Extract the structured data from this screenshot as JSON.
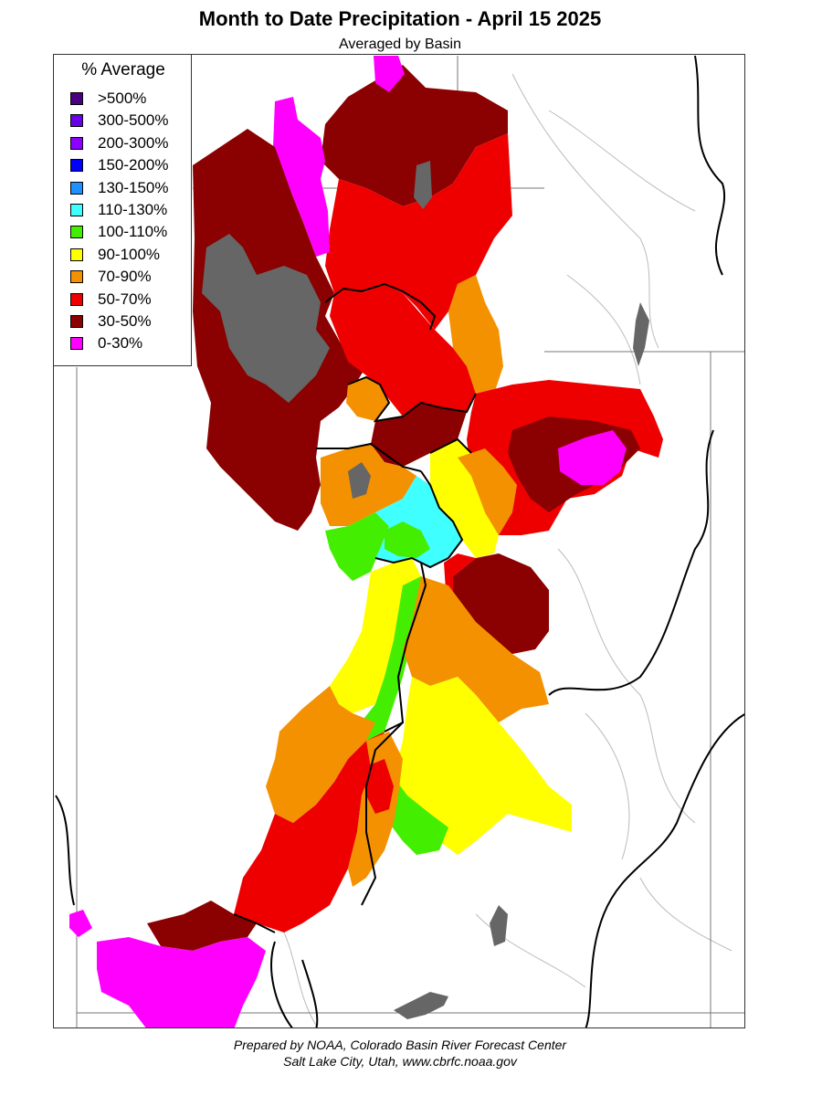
{
  "title": "Month to Date Precipitation - April 15 2025",
  "subtitle": "Averaged by Basin",
  "legend": {
    "title": "% Average",
    "items": [
      {
        "label": ">500%",
        "color": "#4B0082"
      },
      {
        "label": "300-500%",
        "color": "#6A00E8"
      },
      {
        "label": "200-300%",
        "color": "#8B00FF"
      },
      {
        "label": "150-200%",
        "color": "#0000FF"
      },
      {
        "label": "130-150%",
        "color": "#1E90FF"
      },
      {
        "label": "110-130%",
        "color": "#40FFFF"
      },
      {
        "label": "100-110%",
        "color": "#44EE00"
      },
      {
        "label": "90-100%",
        "color": "#FFFF00"
      },
      {
        "label": "70-90%",
        "color": "#F39100"
      },
      {
        "label": "50-70%",
        "color": "#EE0000"
      },
      {
        "label": "30-50%",
        "color": "#8B0000"
      },
      {
        "label": "0-30%",
        "color": "#FF00FF"
      }
    ]
  },
  "no_data_color": "#666666",
  "footer": {
    "line1": "Prepared by NOAA, Colorado Basin River Forecast Center",
    "line2": "Salt Lake City, Utah, www.cbrfc.noaa.gov"
  }
}
